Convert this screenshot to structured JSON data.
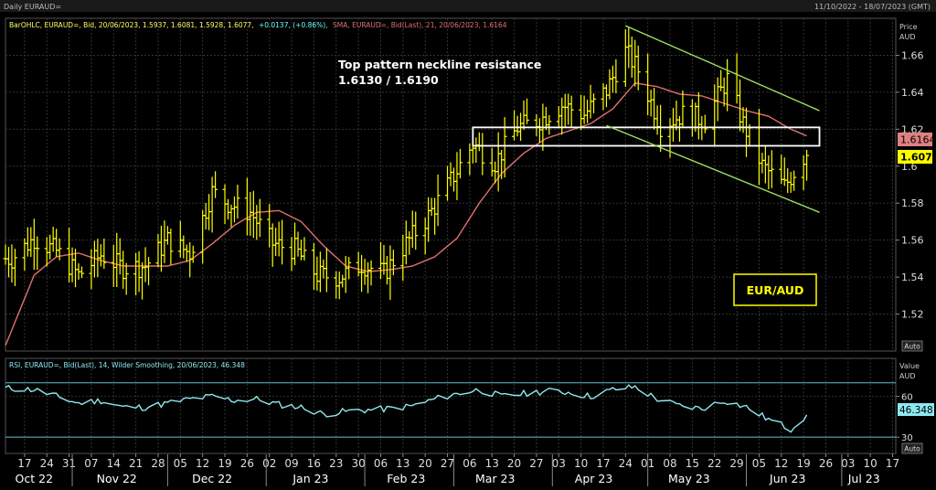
{
  "window": {
    "title": "Daily EURAUD=",
    "date_range": "11/10/2022 - 18/07/2023 (GMT)"
  },
  "main_panel": {
    "legend_bar": "BarOHLC, EURAUD=, Bid, 20/06/2023, 1.5937, 1.6081, 1.5928, 1.6077,",
    "legend_change": "+0.0137, (+0.86%),",
    "legend_sma": "SMA, EURAUD=, Bid(Last), 21, 20/06/2023, 1.6164",
    "axis_title_1": "Price",
    "axis_title_2": "AUD",
    "auto_label": "Auto",
    "annotation_line1": "Top pattern neckline resistance",
    "annotation_line2": "1.6130 / 1.6190",
    "pair_label": "EUR/AUD",
    "last_price_label": "1.607",
    "sma_price_label": "1.6164"
  },
  "rsi_panel": {
    "legend": "RSI, EURAUD=, Bid(Last), 14, Wilder Smoothing, 20/06/2023, 46.348",
    "axis_title_1": "Value",
    "axis_title_2": "AUD",
    "value_label": "46.348",
    "auto_label": "Auto"
  },
  "colors": {
    "background": "#000000",
    "bars": "#ffff00",
    "sma": "#e07070",
    "rsi": "#8ee8f0",
    "channel": "#9be15d",
    "grid": "#333333",
    "label_price_bg": "#ffff00",
    "label_sma_bg": "#e08080"
  },
  "chart_data": [
    {
      "type": "ohlc",
      "series": [
        {
          "name": "BarOHLC",
          "x": [
            "2022-10-13",
            "2022-10-20",
            "2022-10-27",
            "2022-11-03",
            "2022-11-10",
            "2022-11-17",
            "2022-11-24",
            "2022-12-01",
            "2022-12-08",
            "2022-12-15",
            "2022-12-20",
            "2022-12-27",
            "2023-01-03",
            "2023-01-10",
            "2023-01-17",
            "2023-01-24",
            "2023-01-31",
            "2023-02-07",
            "2023-02-14",
            "2023-02-21",
            "2023-02-28",
            "2023-03-07",
            "2023-03-14",
            "2023-03-21",
            "2023-03-28",
            "2023-04-04",
            "2023-04-11",
            "2023-04-18",
            "2023-04-24",
            "2023-04-28",
            "2023-05-05",
            "2023-05-12",
            "2023-05-19",
            "2023-05-26",
            "2023-05-31",
            "2023-06-06",
            "2023-06-13",
            "2023-06-20"
          ],
          "close": [
            1.55,
            1.561,
            1.554,
            1.541,
            1.552,
            1.545,
            1.546,
            1.56,
            1.553,
            1.586,
            1.58,
            1.575,
            1.558,
            1.555,
            1.541,
            1.54,
            1.547,
            1.542,
            1.558,
            1.573,
            1.592,
            1.612,
            1.602,
            1.621,
            1.625,
            1.633,
            1.628,
            1.641,
            1.662,
            1.652,
            1.622,
            1.628,
            1.625,
            1.647,
            1.623,
            1.6,
            1.589,
            1.6077
          ]
        }
      ],
      "ylim": [
        1.5,
        1.68
      ],
      "yticks": [
        1.52,
        1.54,
        1.56,
        1.58,
        1.6,
        1.62,
        1.64,
        1.66
      ]
    },
    {
      "type": "line",
      "series": [
        {
          "name": "SMA",
          "x": [
            "2022-10-11",
            "2022-10-20",
            "2022-10-27",
            "2022-11-03",
            "2022-11-10",
            "2022-11-17",
            "2022-11-24",
            "2022-12-01",
            "2022-12-08",
            "2022-12-15",
            "2022-12-22",
            "2022-12-29",
            "2023-01-05",
            "2023-01-12",
            "2023-01-19",
            "2023-01-26",
            "2023-02-02",
            "2023-02-09",
            "2023-02-16",
            "2023-02-23",
            "2023-03-02",
            "2023-03-09",
            "2023-03-16",
            "2023-03-23",
            "2023-03-30",
            "2023-04-06",
            "2023-04-13",
            "2023-04-20",
            "2023-04-27",
            "2023-05-04",
            "2023-05-11",
            "2023-05-18",
            "2023-05-25",
            "2023-06-01",
            "2023-06-08",
            "2023-06-15",
            "2023-06-20"
          ],
          "values": [
            1.503,
            1.541,
            1.551,
            1.553,
            1.549,
            1.546,
            1.546,
            1.546,
            1.549,
            1.558,
            1.568,
            1.575,
            1.576,
            1.57,
            1.557,
            1.546,
            1.543,
            1.544,
            1.546,
            1.551,
            1.561,
            1.58,
            1.596,
            1.607,
            1.615,
            1.619,
            1.623,
            1.631,
            1.645,
            1.643,
            1.639,
            1.638,
            1.634,
            1.63,
            1.627,
            1.62,
            1.6164
          ]
        }
      ]
    },
    {
      "type": "line",
      "series": [
        {
          "name": "RSI",
          "x": [
            "2022-10-11",
            "2022-10-20",
            "2022-10-27",
            "2022-11-03",
            "2022-11-10",
            "2022-11-17",
            "2022-11-24",
            "2022-12-01",
            "2022-12-08",
            "2022-12-15",
            "2022-12-22",
            "2022-12-29",
            "2023-01-05",
            "2023-01-12",
            "2023-01-19",
            "2023-01-26",
            "2023-02-02",
            "2023-02-09",
            "2023-02-16",
            "2023-02-23",
            "2023-03-02",
            "2023-03-09",
            "2023-03-16",
            "2023-03-23",
            "2023-03-30",
            "2023-04-06",
            "2023-04-13",
            "2023-04-20",
            "2023-04-27",
            "2023-05-04",
            "2023-05-11",
            "2023-05-18",
            "2023-05-25",
            "2023-06-01",
            "2023-06-08",
            "2023-06-15",
            "2023-06-20"
          ],
          "values": [
            66,
            65,
            60,
            55,
            57,
            52,
            52,
            55,
            58,
            60,
            57,
            58,
            54,
            52,
            47,
            49,
            50,
            51,
            53,
            58,
            62,
            65,
            60,
            62,
            64,
            63,
            60,
            65,
            67,
            58,
            53,
            51,
            57,
            52,
            43,
            36,
            46.348
          ]
        }
      ],
      "ylim": [
        18,
        88
      ],
      "yticks": [
        30,
        60
      ],
      "reference_lines": [
        30,
        70
      ]
    }
  ],
  "x_axis": {
    "day_ticks": [
      {
        "date": "2022-10-17",
        "label": "17"
      },
      {
        "date": "2022-10-24",
        "label": "24"
      },
      {
        "date": "2022-10-31",
        "label": "31"
      },
      {
        "date": "2022-11-07",
        "label": "07"
      },
      {
        "date": "2022-11-14",
        "label": "14"
      },
      {
        "date": "2022-11-21",
        "label": "21"
      },
      {
        "date": "2022-11-28",
        "label": "28"
      },
      {
        "date": "2022-12-05",
        "label": "05"
      },
      {
        "date": "2022-12-12",
        "label": "12"
      },
      {
        "date": "2022-12-19",
        "label": "19"
      },
      {
        "date": "2022-12-26",
        "label": "26"
      },
      {
        "date": "2023-01-02",
        "label": "02"
      },
      {
        "date": "2023-01-09",
        "label": "09"
      },
      {
        "date": "2023-01-16",
        "label": "16"
      },
      {
        "date": "2023-01-23",
        "label": "23"
      },
      {
        "date": "2023-01-30",
        "label": "30"
      },
      {
        "date": "2023-02-06",
        "label": "06"
      },
      {
        "date": "2023-02-13",
        "label": "13"
      },
      {
        "date": "2023-02-20",
        "label": "20"
      },
      {
        "date": "2023-02-27",
        "label": "27"
      },
      {
        "date": "2023-03-06",
        "label": "06"
      },
      {
        "date": "2023-03-13",
        "label": "13"
      },
      {
        "date": "2023-03-20",
        "label": "20"
      },
      {
        "date": "2023-03-27",
        "label": "27"
      },
      {
        "date": "2023-04-03",
        "label": "03"
      },
      {
        "date": "2023-04-10",
        "label": "10"
      },
      {
        "date": "2023-04-17",
        "label": "17"
      },
      {
        "date": "2023-04-24",
        "label": "24"
      },
      {
        "date": "2023-05-01",
        "label": "01"
      },
      {
        "date": "2023-05-08",
        "label": "08"
      },
      {
        "date": "2023-05-15",
        "label": "15"
      },
      {
        "date": "2023-05-22",
        "label": "22"
      },
      {
        "date": "2023-05-29",
        "label": "29"
      },
      {
        "date": "2023-06-05",
        "label": "05"
      },
      {
        "date": "2023-06-12",
        "label": "12"
      },
      {
        "date": "2023-06-19",
        "label": "19"
      },
      {
        "date": "2023-06-26",
        "label": "26"
      },
      {
        "date": "2023-07-03",
        "label": "03"
      },
      {
        "date": "2023-07-10",
        "label": "10"
      },
      {
        "date": "2023-07-17",
        "label": "17"
      }
    ],
    "month_labels": [
      {
        "date": "2022-10-20",
        "label": "Oct 22"
      },
      {
        "date": "2022-11-15",
        "label": "Nov 22"
      },
      {
        "date": "2022-12-15",
        "label": "Dec 22"
      },
      {
        "date": "2023-01-15",
        "label": "Jan 23"
      },
      {
        "date": "2023-02-14",
        "label": "Feb 23"
      },
      {
        "date": "2023-03-14",
        "label": "Mar 23"
      },
      {
        "date": "2023-04-14",
        "label": "Apr 23"
      },
      {
        "date": "2023-05-14",
        "label": "May 23"
      },
      {
        "date": "2023-06-14",
        "label": "Jun 23"
      },
      {
        "date": "2023-07-08",
        "label": "Jul 23"
      }
    ],
    "month_boundaries": [
      "2022-11-01",
      "2022-12-01",
      "2023-01-01",
      "2023-02-01",
      "2023-03-01",
      "2023-04-01",
      "2023-05-01",
      "2023-06-01",
      "2023-07-01"
    ]
  },
  "overlays": {
    "neckline_box": {
      "x_from": "2023-03-07",
      "x_to": "2023-06-24",
      "y_from": 1.613,
      "y_to": 1.619
    },
    "channel_upper": {
      "from": {
        "date": "2023-04-24",
        "value": 1.676
      },
      "to": {
        "date": "2023-06-24",
        "value": 1.63
      }
    },
    "channel_lower": {
      "from": {
        "date": "2023-04-18",
        "value": 1.622
      },
      "to": {
        "date": "2023-06-24",
        "value": 1.575
      }
    }
  }
}
